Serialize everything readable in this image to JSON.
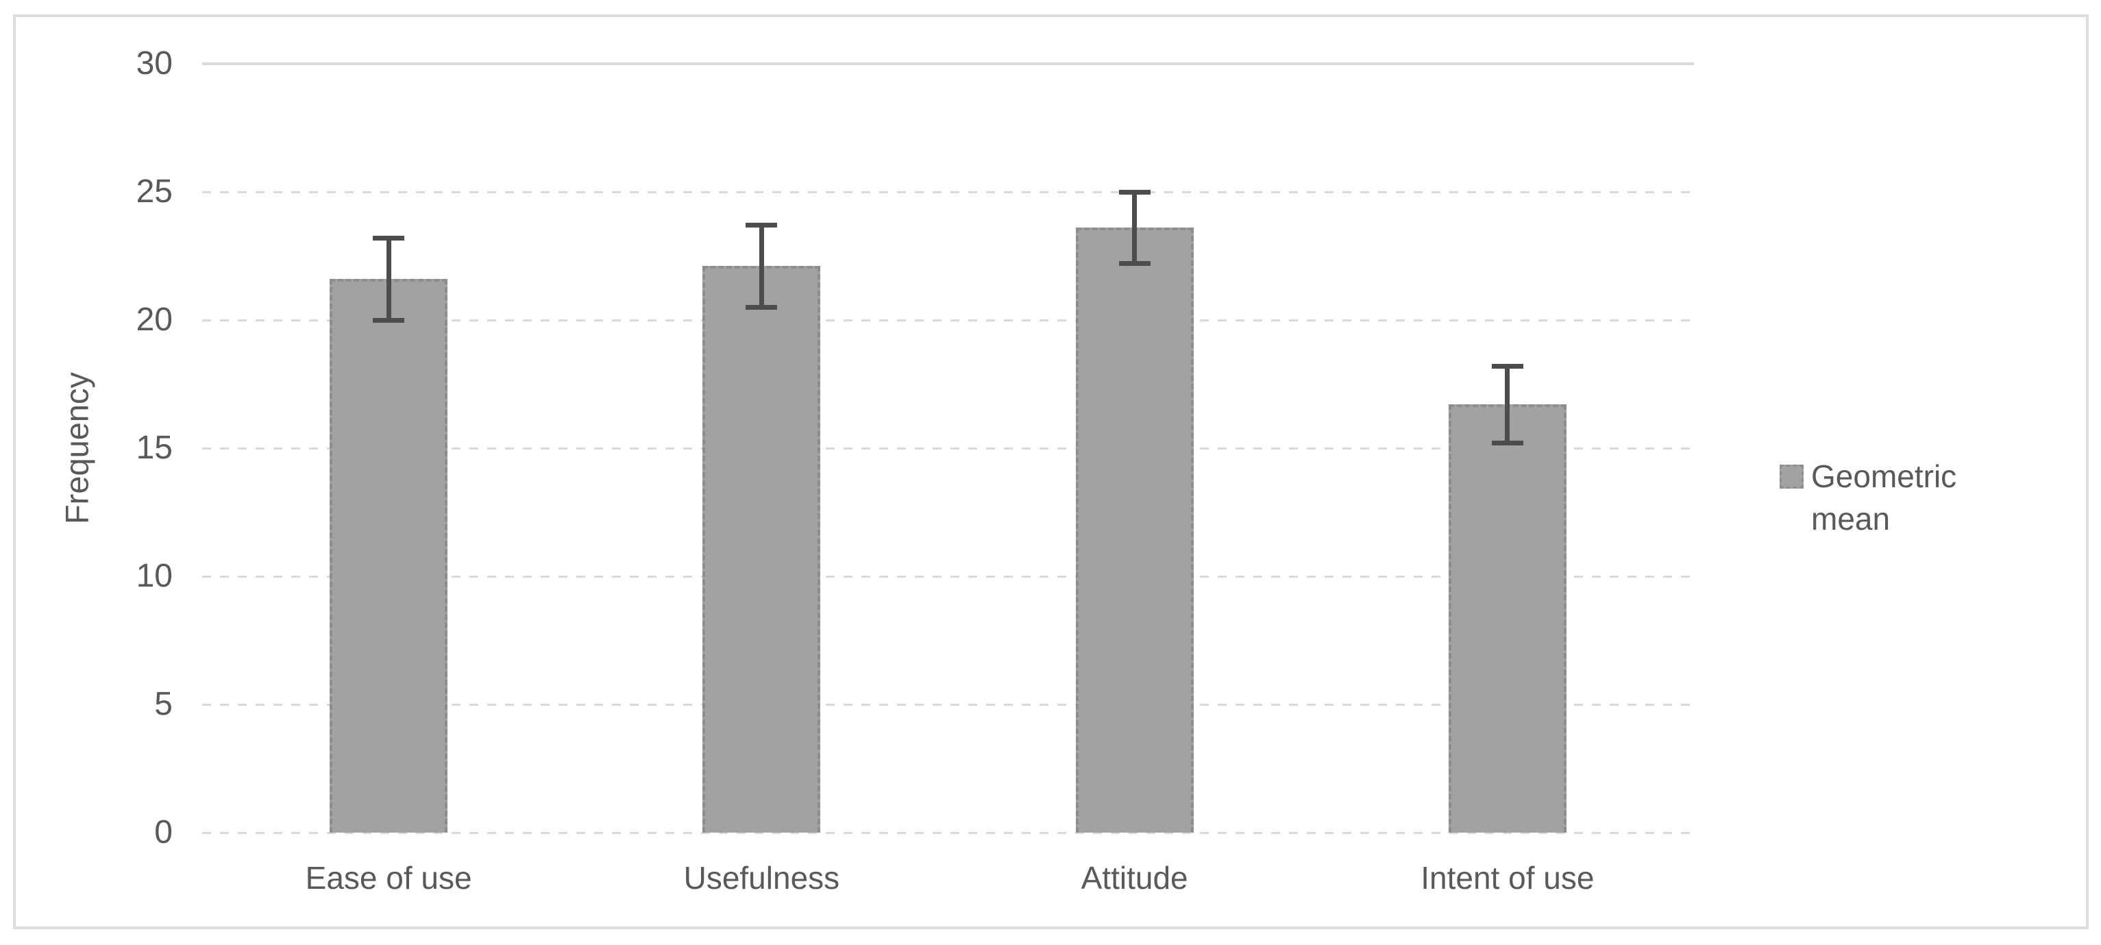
{
  "chart_data": {
    "type": "bar",
    "title": "",
    "categories": [
      "Ease of use",
      "Usefulness",
      "Attitude",
      "Intent of use"
    ],
    "series": [
      {
        "name": "Geometric mean",
        "values": [
          21.6,
          22.1,
          23.6,
          16.7
        ],
        "error_plus": [
          1.6,
          1.6,
          1.4,
          1.5
        ],
        "error_minus": [
          1.6,
          1.6,
          1.4,
          1.5
        ]
      }
    ],
    "xlabel": "",
    "ylabel": "Frequency",
    "ylim": [
      0,
      30
    ],
    "y_ticks": [
      0,
      5,
      10,
      15,
      20,
      25,
      30
    ],
    "grid": "horizontal-dashed",
    "legend": {
      "position": "right",
      "entries": [
        {
          "label": "Geometric mean",
          "swatch": "gray-square"
        }
      ]
    }
  },
  "colors": {
    "bar_fill": "#A2A2A2",
    "bar_border": "#8D8D8D",
    "error_bar": "#4D4D4D",
    "gridline": "#D9D9D9",
    "axis_line": "#DADADA",
    "text": "#595959",
    "frame_border": "#DCDCDC",
    "background": "#FFFFFF"
  }
}
